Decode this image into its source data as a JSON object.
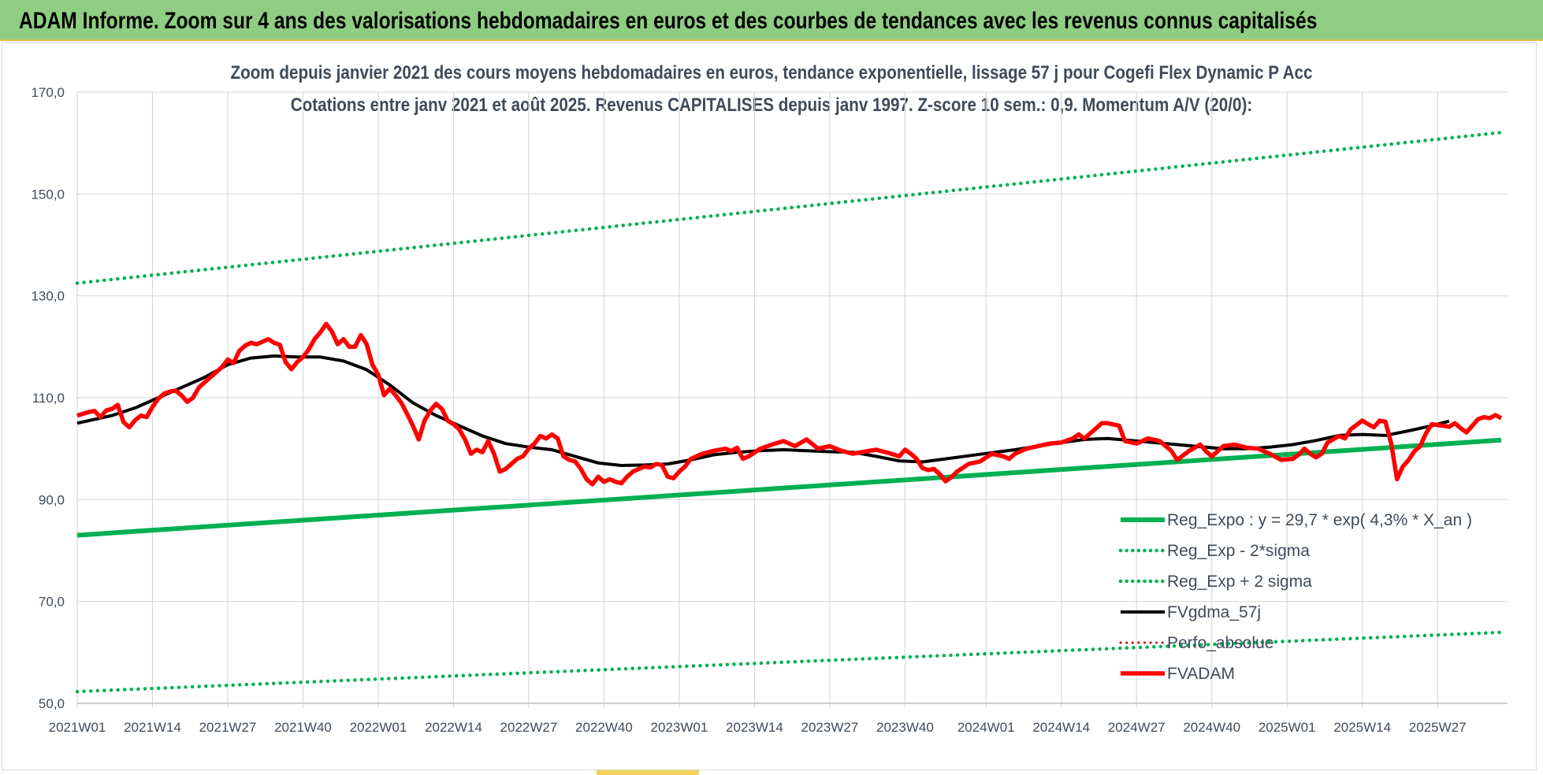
{
  "banner": {
    "title": "ADAM Informe. Zoom sur 4 ans des valorisations hebdomadaires en euros et des courbes de tendances avec les revenus connus capitalisés"
  },
  "colors": {
    "banner_bg": "#8fce82",
    "reg_expo": "#00b050",
    "price": "#ff0000",
    "moving_avg": "#000000",
    "perfo": "#c00000",
    "grid": "#d9d9d9",
    "text": "#404a5a"
  },
  "chart_data": {
    "type": "line",
    "title": "Zoom depuis janvier 2021 des cours moyens hebdomadaires en euros, tendance exponentielle, lissage 57 j pour Cogefi Flex Dynamic P Acc",
    "subtitle": "Cotations entre janv 2021 et août 2025. Revenus CAPITALISES depuis janv 1997. Z-score 10 sem.: 0,9. Momentum A/V (20/0):",
    "ylim": [
      50,
      170
    ],
    "y_ticks": [
      "170,0",
      "150,0",
      "130,0",
      "110,0",
      "90,0",
      "70,0",
      "50,0"
    ],
    "y_tick_values": [
      170,
      150,
      130,
      110,
      90,
      70,
      50
    ],
    "x_range_weeks": [
      0,
      237
    ],
    "x_ticks": [
      {
        "label": "2021W01",
        "week": 0
      },
      {
        "label": "2021W14",
        "week": 13
      },
      {
        "label": "2021W27",
        "week": 26
      },
      {
        "label": "2021W40",
        "week": 39
      },
      {
        "label": "2022W01",
        "week": 52
      },
      {
        "label": "2022W14",
        "week": 65
      },
      {
        "label": "2022W27",
        "week": 78
      },
      {
        "label": "2022W40",
        "week": 91
      },
      {
        "label": "2023W01",
        "week": 104
      },
      {
        "label": "2023W14",
        "week": 117
      },
      {
        "label": "2023W27",
        "week": 130
      },
      {
        "label": "2023W40",
        "week": 143
      },
      {
        "label": "2024W01",
        "week": 157
      },
      {
        "label": "2024W14",
        "week": 170
      },
      {
        "label": "2024W27",
        "week": 183
      },
      {
        "label": "2024W40",
        "week": 196
      },
      {
        "label": "2025W01",
        "week": 209
      },
      {
        "label": "2025W14",
        "week": 222
      },
      {
        "label": "2025W27",
        "week": 235
      }
    ],
    "legend_position": "bottom-right",
    "series": [
      {
        "name": "Reg_Expo : y = 29,7 * exp( 4,3% *  X_an )",
        "style": "solid-thick",
        "color": "#00b050",
        "points": [
          [
            0,
            83.0
          ],
          [
            237,
            101.0
          ]
        ]
      },
      {
        "name": "Reg_Exp - 2*sigma",
        "style": "dotted",
        "color": "#00b050",
        "points": [
          [
            0,
            52.3
          ],
          [
            237,
            63.5
          ]
        ]
      },
      {
        "name": "Reg_Exp + 2 sigma",
        "style": "dotted",
        "color": "#00b050",
        "points": [
          [
            0,
            132.5
          ],
          [
            237,
            161.0
          ]
        ]
      },
      {
        "name": "FVgdma_57j",
        "style": "solid",
        "color": "#000000",
        "points": [
          [
            0,
            105.0
          ],
          [
            6,
            106.5
          ],
          [
            10,
            108.0
          ],
          [
            14,
            110.0
          ],
          [
            18,
            112.0
          ],
          [
            22,
            114.0
          ],
          [
            26,
            116.5
          ],
          [
            30,
            117.8
          ],
          [
            34,
            118.2
          ],
          [
            38,
            118.0
          ],
          [
            42,
            118.0
          ],
          [
            46,
            117.2
          ],
          [
            50,
            115.5
          ],
          [
            54,
            112.5
          ],
          [
            58,
            109.0
          ],
          [
            62,
            106.5
          ],
          [
            66,
            104.5
          ],
          [
            70,
            102.5
          ],
          [
            74,
            101.0
          ],
          [
            78,
            100.3
          ],
          [
            82,
            99.8
          ],
          [
            86,
            98.5
          ],
          [
            90,
            97.2
          ],
          [
            94,
            96.7
          ],
          [
            98,
            96.8
          ],
          [
            102,
            97.0
          ],
          [
            106,
            97.8
          ],
          [
            110,
            98.8
          ],
          [
            114,
            99.3
          ],
          [
            118,
            99.6
          ],
          [
            122,
            99.8
          ],
          [
            126,
            99.6
          ],
          [
            130,
            99.4
          ],
          [
            134,
            99.3
          ],
          [
            138,
            98.5
          ],
          [
            142,
            97.6
          ],
          [
            146,
            97.4
          ],
          [
            150,
            98.0
          ],
          [
            154,
            98.6
          ],
          [
            158,
            99.2
          ],
          [
            162,
            99.8
          ],
          [
            166,
            100.5
          ],
          [
            170,
            101.2
          ],
          [
            174,
            101.8
          ],
          [
            178,
            102.0
          ],
          [
            182,
            101.6
          ],
          [
            186,
            101.2
          ],
          [
            190,
            100.8
          ],
          [
            194,
            100.4
          ],
          [
            198,
            100.0
          ],
          [
            202,
            100.0
          ],
          [
            206,
            100.3
          ],
          [
            210,
            100.8
          ],
          [
            214,
            101.6
          ],
          [
            218,
            102.6
          ],
          [
            222,
            102.8
          ],
          [
            226,
            102.6
          ],
          [
            230,
            103.5
          ],
          [
            234,
            104.5
          ],
          [
            237,
            105.4
          ]
        ]
      },
      {
        "name": "Perfo_absolue",
        "style": "dotted",
        "color": "#c00000",
        "points": []
      },
      {
        "name": "FVADAM",
        "style": "solid-thick",
        "color": "#ff0000",
        "points": [
          [
            0,
            106.5
          ],
          [
            2,
            107.2
          ],
          [
            3,
            107.4
          ],
          [
            4,
            106.2
          ],
          [
            5,
            107.5
          ],
          [
            6,
            107.8
          ],
          [
            7,
            108.6
          ],
          [
            8,
            105.2
          ],
          [
            9,
            104.2
          ],
          [
            10,
            105.6
          ],
          [
            11,
            106.5
          ],
          [
            12,
            106.2
          ],
          [
            13,
            108.2
          ],
          [
            14,
            109.8
          ],
          [
            15,
            110.8
          ],
          [
            16,
            111.2
          ],
          [
            17,
            111.4
          ],
          [
            18,
            110.5
          ],
          [
            19,
            109.2
          ],
          [
            20,
            110.0
          ],
          [
            21,
            112.0
          ],
          [
            22,
            113.0
          ],
          [
            23,
            114.0
          ],
          [
            24,
            115.0
          ],
          [
            25,
            116.0
          ],
          [
            26,
            117.5
          ],
          [
            27,
            116.8
          ],
          [
            28,
            119.2
          ],
          [
            29,
            120.2
          ],
          [
            30,
            120.8
          ],
          [
            31,
            120.5
          ],
          [
            32,
            121.0
          ],
          [
            33,
            121.5
          ],
          [
            34,
            120.8
          ],
          [
            35,
            120.4
          ],
          [
            36,
            117.0
          ],
          [
            37,
            115.6
          ],
          [
            38,
            117.0
          ],
          [
            39,
            118.0
          ],
          [
            40,
            119.5
          ],
          [
            41,
            121.5
          ],
          [
            42,
            122.8
          ],
          [
            43,
            124.5
          ],
          [
            44,
            123.0
          ],
          [
            45,
            120.5
          ],
          [
            46,
            121.5
          ],
          [
            47,
            120.0
          ],
          [
            48,
            120.0
          ],
          [
            49,
            122.3
          ],
          [
            50,
            120.5
          ],
          [
            51,
            116.5
          ],
          [
            52,
            114.5
          ],
          [
            53,
            110.5
          ],
          [
            54,
            111.8
          ],
          [
            55,
            110.5
          ],
          [
            56,
            109.0
          ],
          [
            57,
            106.8
          ],
          [
            58,
            104.5
          ],
          [
            59,
            101.8
          ],
          [
            60,
            105.5
          ],
          [
            61,
            107.5
          ],
          [
            62,
            108.8
          ],
          [
            63,
            107.8
          ],
          [
            64,
            105.5
          ],
          [
            65,
            104.8
          ],
          [
            66,
            103.8
          ],
          [
            67,
            101.8
          ],
          [
            68,
            99.0
          ],
          [
            69,
            99.8
          ],
          [
            70,
            99.3
          ],
          [
            71,
            101.5
          ],
          [
            72,
            99.0
          ],
          [
            73,
            95.5
          ],
          [
            74,
            96.0
          ],
          [
            75,
            97.0
          ],
          [
            76,
            98.0
          ],
          [
            77,
            98.5
          ],
          [
            78,
            100.0
          ],
          [
            79,
            101.0
          ],
          [
            80,
            102.5
          ],
          [
            81,
            102.0
          ],
          [
            82,
            102.8
          ],
          [
            83,
            102.0
          ],
          [
            84,
            98.5
          ],
          [
            85,
            97.8
          ],
          [
            86,
            97.5
          ],
          [
            87,
            96.0
          ],
          [
            88,
            94.0
          ],
          [
            89,
            93.0
          ],
          [
            90,
            94.5
          ],
          [
            91,
            93.5
          ],
          [
            92,
            94.0
          ],
          [
            93,
            93.5
          ],
          [
            94,
            93.2
          ],
          [
            95,
            94.5
          ],
          [
            96,
            95.5
          ],
          [
            97,
            96.0
          ],
          [
            98,
            96.5
          ],
          [
            99,
            96.3
          ],
          [
            100,
            97.0
          ],
          [
            101,
            96.8
          ],
          [
            102,
            94.5
          ],
          [
            103,
            94.2
          ],
          [
            104,
            95.5
          ],
          [
            105,
            96.5
          ],
          [
            106,
            98.0
          ],
          [
            108,
            99.0
          ],
          [
            110,
            99.6
          ],
          [
            112,
            100.0
          ],
          [
            113,
            99.5
          ],
          [
            114,
            100.2
          ],
          [
            115,
            98.0
          ],
          [
            116,
            98.5
          ],
          [
            118,
            100.0
          ],
          [
            120,
            100.8
          ],
          [
            122,
            101.5
          ],
          [
            124,
            100.5
          ],
          [
            126,
            101.8
          ],
          [
            128,
            100.0
          ],
          [
            130,
            100.5
          ],
          [
            132,
            99.6
          ],
          [
            134,
            99.0
          ],
          [
            136,
            99.4
          ],
          [
            138,
            99.8
          ],
          [
            140,
            99.2
          ],
          [
            142,
            98.5
          ],
          [
            143,
            99.8
          ],
          [
            144,
            99.0
          ],
          [
            145,
            98.0
          ],
          [
            146,
            96.2
          ],
          [
            147,
            95.8
          ],
          [
            148,
            96.0
          ],
          [
            149,
            95.0
          ],
          [
            150,
            93.6
          ],
          [
            151,
            94.4
          ],
          [
            152,
            95.5
          ],
          [
            154,
            97.0
          ],
          [
            156,
            97.5
          ],
          [
            158,
            99.0
          ],
          [
            160,
            98.5
          ],
          [
            161,
            98.0
          ],
          [
            162,
            99.0
          ],
          [
            164,
            100.0
          ],
          [
            166,
            100.5
          ],
          [
            168,
            101.0
          ],
          [
            170,
            101.2
          ],
          [
            172,
            102.0
          ],
          [
            173,
            102.8
          ],
          [
            174,
            102.0
          ],
          [
            176,
            104.0
          ],
          [
            177,
            105.0
          ],
          [
            178,
            105.0
          ],
          [
            180,
            104.5
          ],
          [
            181,
            101.5
          ],
          [
            183,
            101.0
          ],
          [
            185,
            102.0
          ],
          [
            187,
            101.5
          ],
          [
            189,
            99.6
          ],
          [
            190,
            97.8
          ],
          [
            192,
            99.5
          ],
          [
            194,
            100.8
          ],
          [
            195,
            99.5
          ],
          [
            196,
            98.5
          ],
          [
            198,
            100.5
          ],
          [
            200,
            100.8
          ],
          [
            202,
            100.2
          ],
          [
            204,
            100.0
          ],
          [
            206,
            99.0
          ],
          [
            208,
            97.8
          ],
          [
            210,
            98.0
          ],
          [
            211,
            98.8
          ],
          [
            212,
            100.0
          ],
          [
            213,
            99.0
          ],
          [
            214,
            98.3
          ],
          [
            215,
            99.0
          ],
          [
            216,
            101.2
          ],
          [
            218,
            102.5
          ],
          [
            219,
            102.0
          ],
          [
            220,
            103.8
          ],
          [
            222,
            105.5
          ],
          [
            223,
            104.8
          ],
          [
            224,
            104.2
          ],
          [
            225,
            105.5
          ],
          [
            226,
            105.3
          ],
          [
            227,
            101.0
          ],
          [
            228,
            94.0
          ],
          [
            229,
            96.5
          ],
          [
            230,
            97.8
          ],
          [
            231,
            99.5
          ],
          [
            232,
            100.5
          ],
          [
            233,
            103.0
          ],
          [
            234,
            104.8
          ],
          [
            236,
            104.5
          ],
          [
            237,
            104.3
          ]
        ]
      }
    ],
    "extra_price_tail": [
      [
        237,
        104.3
      ],
      [
        238,
        105.0
      ],
      [
        239,
        104.0
      ],
      [
        240,
        103.2
      ],
      [
        241,
        104.5
      ],
      [
        242,
        105.8
      ],
      [
        243,
        106.2
      ],
      [
        244,
        106.0
      ],
      [
        245,
        106.6
      ],
      [
        246,
        106.0
      ]
    ]
  }
}
